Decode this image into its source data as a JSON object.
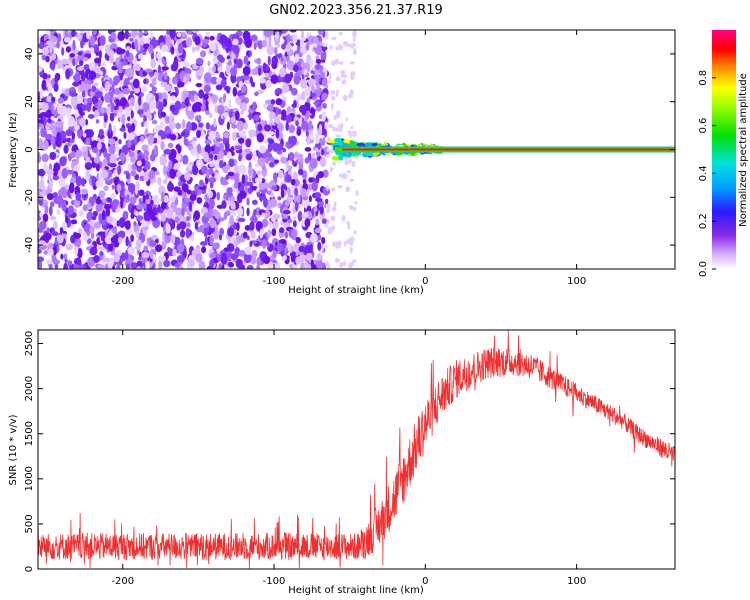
{
  "title": "GN02.2023.356.21.37.R19",
  "colors": {
    "line": "#f03030",
    "frame": "#000000"
  },
  "chart_data": [
    {
      "type": "heatmap",
      "xlabel": "Height of straight line (km)",
      "ylabel": "Frequency (Hz)",
      "xlim": [
        -256,
        165
      ],
      "ylim": [
        -50,
        50
      ],
      "xticks": [
        -200,
        -100,
        0,
        100
      ],
      "xtick_labels": [
        "-200",
        "-100",
        "0",
        "100"
      ],
      "yticks": [
        -40,
        -20,
        0,
        20,
        40
      ],
      "ytick_labels": [
        "-40",
        "-20",
        "0",
        "20",
        "40"
      ],
      "colorbar": {
        "label": "Normalized spectral amplitude",
        "range": [
          0,
          1
        ],
        "ticks": [
          0.0,
          0.2,
          0.4,
          0.6,
          0.8
        ],
        "tick_labels": [
          "0.0",
          "0.2",
          "0.4",
          "0.6",
          "0.8"
        ]
      },
      "noise_region_x": [
        -256,
        -65
      ],
      "carrier": {
        "x_start": -65,
        "x_end": 165,
        "frequency_hz": 0,
        "amplitude": 1.0
      }
    },
    {
      "type": "line",
      "xlabel": "Height of straight line (km)",
      "ylabel": "SNR (10 * v/v)",
      "xlim": [
        -256,
        165
      ],
      "ylim": [
        0,
        2650
      ],
      "xticks": [
        -200,
        -100,
        0,
        100
      ],
      "xtick_labels": [
        "-200",
        "-100",
        "0",
        "100"
      ],
      "yticks": [
        0,
        500,
        1000,
        1500,
        2000,
        2500
      ],
      "ytick_labels": [
        "0",
        "500",
        "1000",
        "1500",
        "2000",
        "2500"
      ],
      "series_envelope": {
        "x": [
          -256,
          -200,
          -150,
          -100,
          -60,
          -45,
          -40,
          -30,
          -20,
          -10,
          0,
          10,
          20,
          30,
          40,
          50,
          60,
          70,
          80,
          90,
          100,
          110,
          120,
          130,
          140,
          150,
          165
        ],
        "y": [
          250,
          250,
          250,
          250,
          250,
          250,
          300,
          500,
          800,
          1200,
          1600,
          1900,
          2100,
          2200,
          2280,
          2300,
          2300,
          2250,
          2150,
          2050,
          1950,
          1850,
          1750,
          1650,
          1500,
          1400,
          1250
        ],
        "noise": [
          150,
          150,
          150,
          150,
          150,
          150,
          200,
          250,
          300,
          300,
          300,
          250,
          220,
          200,
          180,
          170,
          160,
          150,
          130,
          120,
          110,
          100,
          100,
          100,
          100,
          100,
          120
        ]
      }
    }
  ]
}
